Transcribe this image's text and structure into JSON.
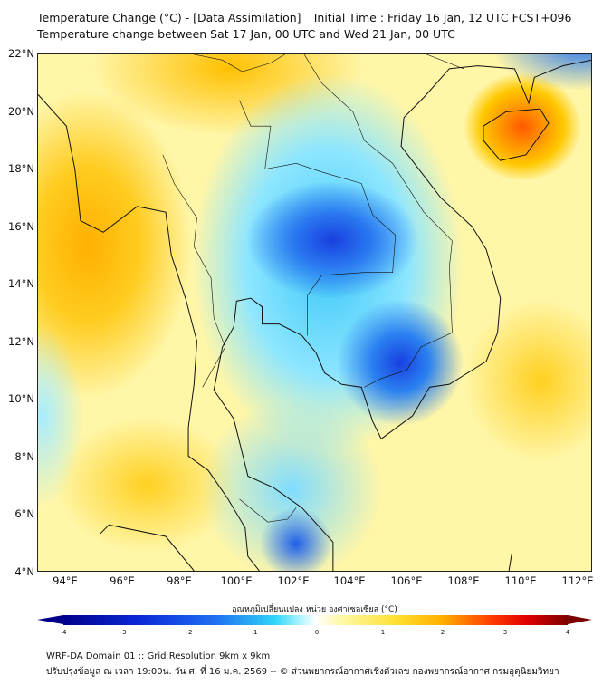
{
  "title": {
    "line1": "Temperature Change (°C) - [Data Assimilation] _ Initial Time : Friday 16 Jan, 12 UTC FCST+096",
    "line2": "Temperature change between Sat 17 Jan, 00 UTC and Wed 21 Jan, 00 UTC"
  },
  "map": {
    "lat_labels": [
      "22°N",
      "20°N",
      "18°N",
      "16°N",
      "14°N",
      "12°N",
      "10°N",
      "8°N",
      "6°N",
      "4°N"
    ],
    "lon_labels": [
      "94°E",
      "96°E",
      "98°E",
      "100°E",
      "102°E",
      "104°E",
      "106°E",
      "108°E",
      "110°E",
      "112°E"
    ],
    "lat_range": [
      4,
      22
    ],
    "lon_range": [
      93,
      112.5
    ]
  },
  "colorbar": {
    "label": "อุณหภูมิเปลี่ยนแปลง หน่วย องศาเซลเซียส (°C)",
    "ticks": [
      "-4",
      "-3",
      "-2",
      "-1",
      "0",
      "1",
      "2",
      "3",
      "4"
    ],
    "colors": {
      "min": "#00008a",
      "zero": "#ffffff",
      "max": "#7a0000"
    }
  },
  "footer": {
    "line1": "WRF-DA Domain 01 :: Grid Resolution 9km x 9km",
    "line2": "ปรับปรุงข้อมูล ณ เวลา 19:00น. วัน ศ. ที่ 16 ม.ค. 2569 -- © ส่วนพยากรณ์อากาศเชิงตัวเลข กองพยากรณ์อากาศ กรมอุตุนิยมวิทยา"
  }
}
